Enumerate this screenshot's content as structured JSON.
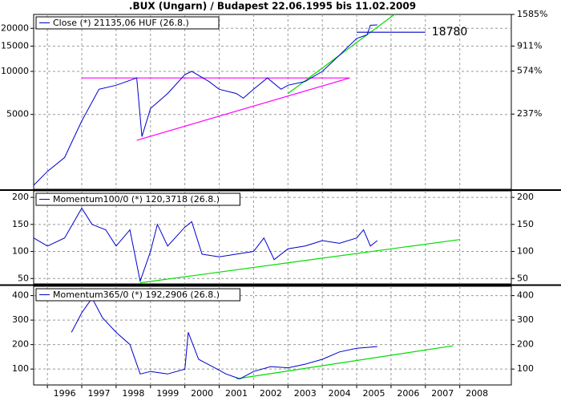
{
  "title": ".BUX (Ungarn) / Budapest 22.06.1995 bis 11.02.2009",
  "chart_data": [
    {
      "type": "line",
      "log": true,
      "grid": true,
      "x": [
        1995.6,
        1996.0,
        1996.5,
        1997.0,
        1997.5,
        1998.0,
        1998.6,
        1998.75,
        1999.0,
        1999.5,
        2000.0,
        2000.2,
        2000.7,
        2001.0,
        2001.5,
        2001.7,
        2002.0,
        2002.4,
        2002.8,
        2003.0,
        2003.5,
        2004.0,
        2004.5,
        2005.0,
        2005.3,
        2005.4,
        2005.6
      ],
      "series": [
        {
          "name": "Close (*) 21135,06 HUF (26.8.)",
          "color": "#0000cc",
          "values": [
            1600,
            2000,
            2500,
            4500,
            7500,
            8000,
            9000,
            3500,
            5500,
            7000,
            9500,
            10000,
            8500,
            7500,
            7000,
            6500,
            7500,
            9000,
            7500,
            8000,
            8500,
            10000,
            13000,
            17000,
            18000,
            21000,
            21135
          ]
        }
      ],
      "xlim": [
        1995.6,
        2009.5
      ],
      "ylim": [
        1500,
        25000
      ],
      "yticks": [
        5000,
        10000,
        15000,
        20000
      ],
      "y2lim": [
        0,
        1585
      ],
      "y2ticks": [
        {
          "value": 237,
          "label": "237%"
        },
        {
          "value": 574,
          "label": "574%"
        },
        {
          "value": 911,
          "label": "911%"
        },
        {
          "value": 1585,
          "label": "1585%"
        }
      ],
      "trendlines": [
        {
          "color": "#ff00ff",
          "x": [
            1997.0,
            2004.8
          ],
          "y": [
            9000,
            9000
          ]
        },
        {
          "color": "#ff00ff",
          "x": [
            1998.6,
            2004.8
          ],
          "y": [
            3300,
            9000
          ]
        },
        {
          "color": "#00dd00",
          "x": [
            2003.0,
            2006.1
          ],
          "y": [
            7000,
            25000
          ]
        }
      ],
      "annotation": {
        "value": 18780,
        "color": "#0000cc",
        "x": [
          2005.0,
          2007.0
        ]
      }
    },
    {
      "type": "line",
      "grid": true,
      "x": [
        1995.6,
        1996.0,
        1996.5,
        1997.0,
        1997.3,
        1997.7,
        1998.0,
        1998.4,
        1998.7,
        1999.0,
        1999.2,
        1999.5,
        2000.0,
        2000.2,
        2000.5,
        2001.0,
        2001.5,
        2002.0,
        2002.3,
        2002.6,
        2003.0,
        2003.5,
        2004.0,
        2004.5,
        2005.0,
        2005.2,
        2005.4,
        2005.6
      ],
      "series": [
        {
          "name": "Momentum100/0 (*) 120,3718 (26.8.)",
          "color": "#0000cc",
          "values": [
            125,
            110,
            125,
            180,
            150,
            140,
            110,
            140,
            45,
            100,
            150,
            110,
            145,
            155,
            95,
            90,
            95,
            100,
            125,
            85,
            105,
            110,
            120,
            115,
            125,
            140,
            110,
            120
          ]
        }
      ],
      "xlim": [
        1995.6,
        2009.5
      ],
      "ylim": [
        40,
        212
      ],
      "yticks": [
        50,
        100,
        150,
        200
      ],
      "trendlines": [
        {
          "color": "#00dd00",
          "x": [
            1998.7,
            2008.0
          ],
          "y": [
            42,
            122
          ]
        }
      ]
    },
    {
      "type": "line",
      "grid": true,
      "x": [
        1996.7,
        1997.0,
        1997.3,
        1997.6,
        1998.0,
        1998.4,
        1998.7,
        1999.0,
        1999.5,
        2000.0,
        2000.1,
        2000.4,
        2000.8,
        2001.2,
        2001.6,
        2002.0,
        2002.5,
        2003.0,
        2003.5,
        2004.0,
        2004.5,
        2005.0,
        2005.6
      ],
      "series": [
        {
          "name": "Momentum365/0 (*) 192,2906 (26.8.)",
          "color": "#0000cc",
          "values": [
            250,
            330,
            390,
            310,
            250,
            200,
            80,
            90,
            80,
            100,
            250,
            140,
            110,
            80,
            60,
            90,
            110,
            105,
            120,
            140,
            170,
            185,
            192
          ]
        }
      ],
      "xlim": [
        1995.6,
        2009.5
      ],
      "xticks": [
        1996,
        1997,
        1998,
        1999,
        2000,
        2001,
        2002,
        2003,
        2004,
        2005,
        2006,
        2007,
        2008
      ],
      "ylim": [
        35,
        438
      ],
      "yticks": [
        100,
        200,
        300,
        400
      ],
      "trendlines": [
        {
          "color": "#00dd00",
          "x": [
            2001.5,
            2007.8
          ],
          "y": [
            60,
            195
          ]
        }
      ]
    }
  ]
}
